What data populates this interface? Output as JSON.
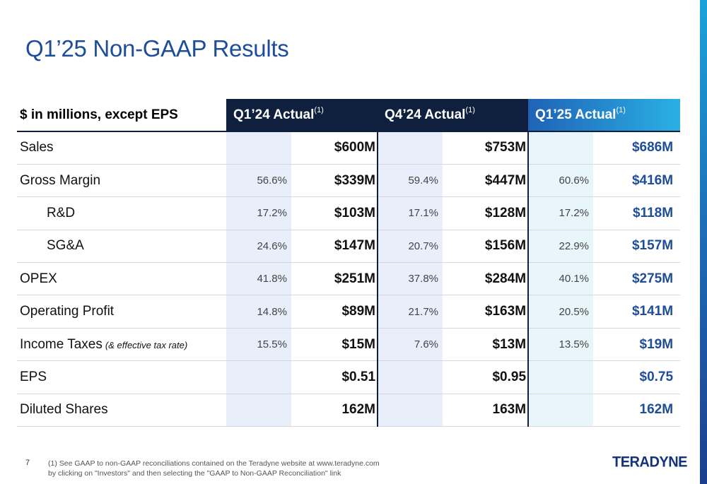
{
  "title": "Q1’25 Non-GAAP Results",
  "table": {
    "label_header": "$ in millions, except EPS",
    "columns": [
      {
        "label": "Q1’24 Actual",
        "sup": "(1)"
      },
      {
        "label": "Q4’24 Actual",
        "sup": "(1)"
      },
      {
        "label": "Q1’25 Actual",
        "sup": "(1)"
      }
    ],
    "rows": [
      {
        "label": "Sales",
        "note": "",
        "cells": [
          [
            "",
            "$600M"
          ],
          [
            "",
            "$753M"
          ],
          [
            "",
            "$686M"
          ]
        ]
      },
      {
        "label": "Gross Margin",
        "note": "",
        "cells": [
          [
            "56.6%",
            "$339M"
          ],
          [
            "59.4%",
            "$447M"
          ],
          [
            "60.6%",
            "$416M"
          ]
        ]
      },
      {
        "label": "R&D",
        "note": "",
        "cells": [
          [
            "17.2%",
            "$103M"
          ],
          [
            "17.1%",
            "$128M"
          ],
          [
            "17.2%",
            "$118M"
          ]
        ]
      },
      {
        "label": "SG&A",
        "note": "",
        "cells": [
          [
            "24.6%",
            "$147M"
          ],
          [
            "20.7%",
            "$156M"
          ],
          [
            "22.9%",
            "$157M"
          ]
        ]
      },
      {
        "label": "OPEX",
        "note": "",
        "cells": [
          [
            "41.8%",
            "$251M"
          ],
          [
            "37.8%",
            "$284M"
          ],
          [
            "40.1%",
            "$275M"
          ]
        ]
      },
      {
        "label": "Operating Profit",
        "note": "",
        "cells": [
          [
            "14.8%",
            "$89M"
          ],
          [
            "21.7%",
            "$163M"
          ],
          [
            "20.5%",
            "$141M"
          ]
        ]
      },
      {
        "label": "Income Taxes",
        "note": "(& effective tax rate)",
        "cells": [
          [
            "15.5%",
            "$15M"
          ],
          [
            "7.6%",
            "$13M"
          ],
          [
            "13.5%",
            "$19M"
          ]
        ]
      },
      {
        "label": "EPS",
        "note": "",
        "cells": [
          [
            "",
            "$0.51"
          ],
          [
            "",
            "$0.95"
          ],
          [
            "",
            "$0.75"
          ]
        ]
      },
      {
        "label": "Diluted Shares",
        "note": "",
        "cells": [
          [
            "",
            "162M"
          ],
          [
            "",
            "163M"
          ],
          [
            "",
            "162M"
          ]
        ]
      }
    ]
  },
  "footer": {
    "page_number": "7",
    "footnote": "(1)  See GAAP to non-GAAP reconciliations contained on the Teradyne website at www.teradyne.com by clicking on \"Investors\" and then selecting the \"GAAP to Non-GAAP Reconciliation\" link",
    "logo_text": "TERADYNE"
  },
  "colors": {
    "title": "#1e4d9a",
    "header_dark": "#0f1f3e",
    "header_light_start": "#1f62b6",
    "header_light_end": "#2ab0e4",
    "pct_fill": "#e8eefa",
    "pct_fill_current": "#e8f5fb",
    "accent_value": "#1e4d9a"
  }
}
